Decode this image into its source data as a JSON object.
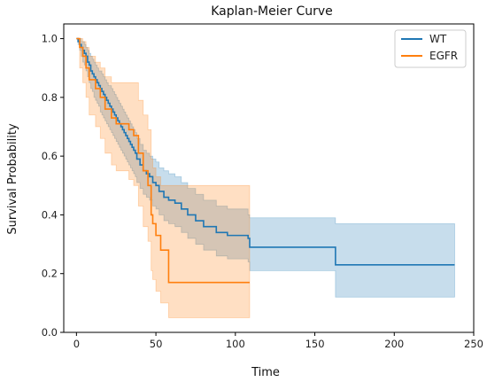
{
  "chart_data": {
    "type": "line",
    "title": "Kaplan-Meier Curve",
    "xlabel": "Time",
    "ylabel": "Survival Probability",
    "xlim": [
      -8,
      250
    ],
    "ylim": [
      0,
      1.05
    ],
    "xticks": [
      0,
      50,
      100,
      150,
      200,
      250
    ],
    "yticks": [
      0.0,
      0.2,
      0.4,
      0.6,
      0.8,
      1.0
    ],
    "grid": false,
    "legend_position": "top-right",
    "series": [
      {
        "name": "WT",
        "color": "#1f77b4",
        "step": true,
        "x": [
          0,
          1,
          2,
          3,
          4,
          5,
          6,
          7,
          8,
          9,
          10,
          11,
          12,
          13,
          14,
          15,
          16,
          17,
          18,
          19,
          20,
          21,
          22,
          23,
          24,
          25,
          26,
          27,
          28,
          29,
          30,
          31,
          32,
          33,
          34,
          35,
          36,
          37,
          38,
          40,
          42,
          44,
          46,
          48,
          50,
          52,
          55,
          58,
          62,
          66,
          70,
          75,
          80,
          88,
          95,
          108,
          109,
          163,
          238
        ],
        "y": [
          1.0,
          0.99,
          0.98,
          0.97,
          0.96,
          0.95,
          0.94,
          0.92,
          0.91,
          0.89,
          0.88,
          0.87,
          0.86,
          0.85,
          0.84,
          0.83,
          0.82,
          0.81,
          0.8,
          0.79,
          0.78,
          0.77,
          0.76,
          0.75,
          0.74,
          0.73,
          0.72,
          0.71,
          0.7,
          0.69,
          0.68,
          0.67,
          0.66,
          0.65,
          0.64,
          0.63,
          0.62,
          0.61,
          0.59,
          0.57,
          0.55,
          0.54,
          0.53,
          0.51,
          0.5,
          0.48,
          0.46,
          0.45,
          0.44,
          0.42,
          0.4,
          0.38,
          0.36,
          0.34,
          0.33,
          0.32,
          0.29,
          0.23,
          0.23
        ],
        "ci_lower": [
          1.0,
          0.98,
          0.96,
          0.94,
          0.92,
          0.91,
          0.89,
          0.87,
          0.85,
          0.83,
          0.82,
          0.8,
          0.79,
          0.78,
          0.77,
          0.75,
          0.74,
          0.73,
          0.72,
          0.71,
          0.7,
          0.69,
          0.68,
          0.67,
          0.66,
          0.65,
          0.64,
          0.63,
          0.62,
          0.61,
          0.6,
          0.59,
          0.58,
          0.57,
          0.56,
          0.55,
          0.54,
          0.53,
          0.51,
          0.49,
          0.47,
          0.46,
          0.45,
          0.43,
          0.42,
          0.4,
          0.38,
          0.37,
          0.36,
          0.34,
          0.32,
          0.3,
          0.28,
          0.26,
          0.25,
          0.24,
          0.21,
          0.12,
          0.12
        ],
        "ci_upper": [
          1.0,
          1.0,
          1.0,
          0.99,
          0.99,
          0.98,
          0.97,
          0.96,
          0.95,
          0.94,
          0.93,
          0.92,
          0.91,
          0.9,
          0.89,
          0.89,
          0.88,
          0.87,
          0.86,
          0.85,
          0.84,
          0.84,
          0.83,
          0.82,
          0.81,
          0.8,
          0.79,
          0.78,
          0.77,
          0.76,
          0.75,
          0.74,
          0.73,
          0.72,
          0.71,
          0.7,
          0.69,
          0.68,
          0.66,
          0.64,
          0.62,
          0.61,
          0.6,
          0.59,
          0.58,
          0.56,
          0.55,
          0.54,
          0.53,
          0.51,
          0.49,
          0.47,
          0.45,
          0.43,
          0.42,
          0.4,
          0.39,
          0.37,
          0.37
        ]
      },
      {
        "name": "EGFR",
        "color": "#ff7f0e",
        "step": true,
        "x": [
          0,
          2,
          4,
          6,
          8,
          12,
          15,
          18,
          22,
          25,
          28,
          33,
          36,
          39,
          42,
          45,
          47,
          48,
          50,
          53,
          58,
          109
        ],
        "y": [
          1.0,
          0.97,
          0.94,
          0.9,
          0.86,
          0.83,
          0.8,
          0.76,
          0.73,
          0.71,
          0.71,
          0.69,
          0.67,
          0.61,
          0.55,
          0.5,
          0.4,
          0.37,
          0.33,
          0.28,
          0.17,
          0.17
        ],
        "ci_lower": [
          1.0,
          0.9,
          0.85,
          0.8,
          0.74,
          0.7,
          0.66,
          0.61,
          0.57,
          0.55,
          0.55,
          0.52,
          0.5,
          0.43,
          0.36,
          0.31,
          0.21,
          0.18,
          0.14,
          0.1,
          0.05,
          0.05
        ],
        "ci_upper": [
          1.0,
          1.0,
          0.99,
          0.97,
          0.94,
          0.92,
          0.9,
          0.87,
          0.85,
          0.85,
          0.85,
          0.85,
          0.85,
          0.79,
          0.74,
          0.69,
          0.59,
          0.56,
          0.53,
          0.5,
          0.5,
          0.5
        ]
      }
    ]
  }
}
